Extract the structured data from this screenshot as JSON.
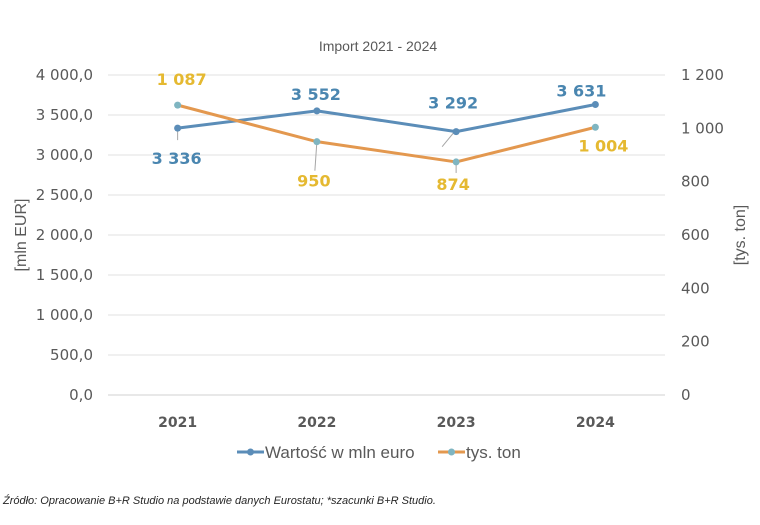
{
  "chart_data": {
    "type": "line",
    "title": "Import 2021 - 2024",
    "categories": [
      "2021",
      "2022",
      "2023",
      "2024"
    ],
    "ylabel": "[mln EUR]",
    "y2label": "[tys. ton]",
    "ylim": [
      0,
      4000
    ],
    "y2lim": [
      0,
      1200
    ],
    "y_ticks": [
      "0,0",
      "500,0",
      "1 000,0",
      "1 500,0",
      "2 000,0",
      "2 500,0",
      "3 000,0",
      "3 500,0",
      "4 000,0"
    ],
    "y2_ticks": [
      "0",
      "200",
      "400",
      "600",
      "800",
      "1 000",
      "1 200"
    ],
    "series": [
      {
        "name": "Wartość w mln euro",
        "axis": "left",
        "values": [
          3336,
          3552,
          3292,
          3631
        ],
        "labels": [
          "3 336",
          "3 552",
          "3 292",
          "3 631"
        ],
        "line_color": "#5B8DB8",
        "marker_color": "#5B8DB8",
        "label_color": "#4A86B0"
      },
      {
        "name": "tys. ton",
        "axis": "right",
        "values": [
          1087,
          950,
          874,
          1004
        ],
        "labels": [
          "1 087",
          "950",
          "874",
          "1 004"
        ],
        "line_color": "#E3984F",
        "marker_color": "#7FB5C1",
        "label_color": "#E5B931"
      }
    ],
    "legend_position": "bottom",
    "grid": true
  },
  "footer": {
    "source": "Źródło: Opracowanie B+R Studio na podstawie danych Eurostatu; *szacunki B+R Studio."
  }
}
